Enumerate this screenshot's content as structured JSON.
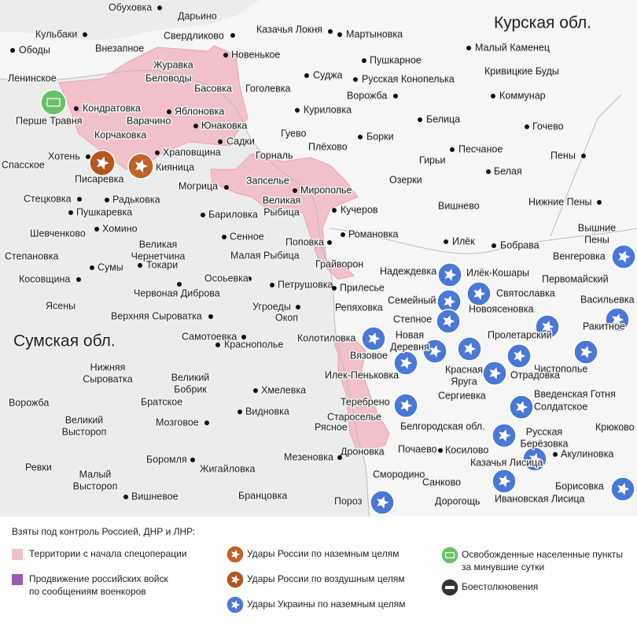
{
  "regions": [
    "Курская обл.",
    "Сумская обл.",
    "Белгородская обл."
  ],
  "settlements": [
    "Обуховка",
    "Дарьино",
    "Казачья Локня",
    "Свердликово",
    "Мартыновка",
    "Кульбаки",
    "Ободы",
    "Внезапное",
    "Новенькое",
    "Малый Каменец",
    "Пушкарное",
    "Журавка",
    "Суджа",
    "Кривицкие Буды",
    "Ленинское",
    "Беловоды",
    "Русская Конопелька",
    "Басовка",
    "Гоголевка",
    "Ворожба",
    "Коммунар",
    "Кондратовка",
    "Яблоновка",
    "Куриловка",
    "Перше Травня",
    "Варачино",
    "Юнаковка",
    "Белица",
    "Гочево",
    "Корчаковка",
    "Гуево",
    "Борки",
    "Садки",
    "Плёхово",
    "Песчаное",
    "Пены",
    "Хотень",
    "Храповщина",
    "Горналь",
    "Спасское",
    "Гирьи",
    "Писаревка",
    "Кияница",
    "Белая",
    "Запселье",
    "Озерки",
    "Мирополье",
    "Стецковка",
    "Радьковка",
    "Могрица",
    [
      "Великая",
      "Рыбица"
    ],
    "Вишнево",
    "Нижние Пены",
    "Кучеров",
    "Пушкаревка",
    "Бариловка",
    "Шевченково",
    "Хомино",
    "Сенное",
    "Поповка",
    "Романовка",
    [
      "Вышние",
      "Пены"
    ],
    [
      "Великая",
      "Чернетчина"
    ],
    "Илёк",
    "Бобрава",
    "Степановка",
    "Малая Рыбица",
    "Венгеровка",
    "Грайворон",
    "Сумы",
    "Токари",
    "Надеждевка",
    "Илёк-Кошары",
    "Косовщина",
    "Осоьевка",
    "Первомайский",
    "Петрушовка",
    "Прилесье",
    "Червоная Диброва",
    "Семейный",
    "Святославка",
    "Ясены",
    "Угроеды",
    "Репяховка",
    "Новоясеновка",
    "Васильевка",
    "Верхняя Сыроватка",
    "Окоп",
    "Степное",
    "Ракитное",
    "Самотоевка",
    "Колотиловка",
    [
      "Новая",
      "Деревня"
    ],
    "Пролетарский",
    "Краснополье",
    "Вязовое",
    [
      "Красная",
      "Яруга"
    ],
    "Чистополье",
    [
      "Нижняя",
      "Сыроватка"
    ],
    "Илек-Пеньковка",
    "Отрадовка",
    [
      "Великий",
      "Бобрик"
    ],
    "Хмелевка",
    "Сергиевка",
    "Введенская Готня",
    "Братское",
    "Ворожба",
    "Теребрено",
    "Солдатское",
    "Видновка",
    [
      "Великий",
      "Выстороп"
    ],
    "Мозговое",
    "Староселье",
    "Рясное",
    "Крюково",
    [
      "Русская",
      "Берёзовка"
    ],
    "Дроновка",
    "Почаево",
    "Косилово",
    "Акулиновка",
    "Боромля",
    "Мезеновка",
    "Казачья Лисица",
    "Жигайловка",
    "Ревки",
    [
      "Малый",
      "Выстороп"
    ],
    "Смородино",
    "Санково",
    "Борисовка",
    "Вишневое",
    "Бранцовка",
    "Дорогощь",
    "Ивановская Лисица",
    "Пороз"
  ],
  "legend": {
    "title": "Взяты под контроль Россией, ДНР и ЛНР:",
    "items": [
      {
        "label": [
          "Территории с начала спецоперации"
        ]
      },
      {
        "label": [
          "Продвижение российских войск",
          "по сообщениям военкоров"
        ]
      },
      {
        "label": [
          "Удары России по наземным целям"
        ]
      },
      {
        "label": [
          "Удары России по воздушным целям"
        ]
      },
      {
        "label": [
          "Удары Украины по наземным целям"
        ]
      },
      {
        "label": [
          "Освобожденные населенные пункты",
          "за минувшие сутки"
        ]
      },
      {
        "label": [
          "Боестолкновения"
        ]
      }
    ]
  }
}
